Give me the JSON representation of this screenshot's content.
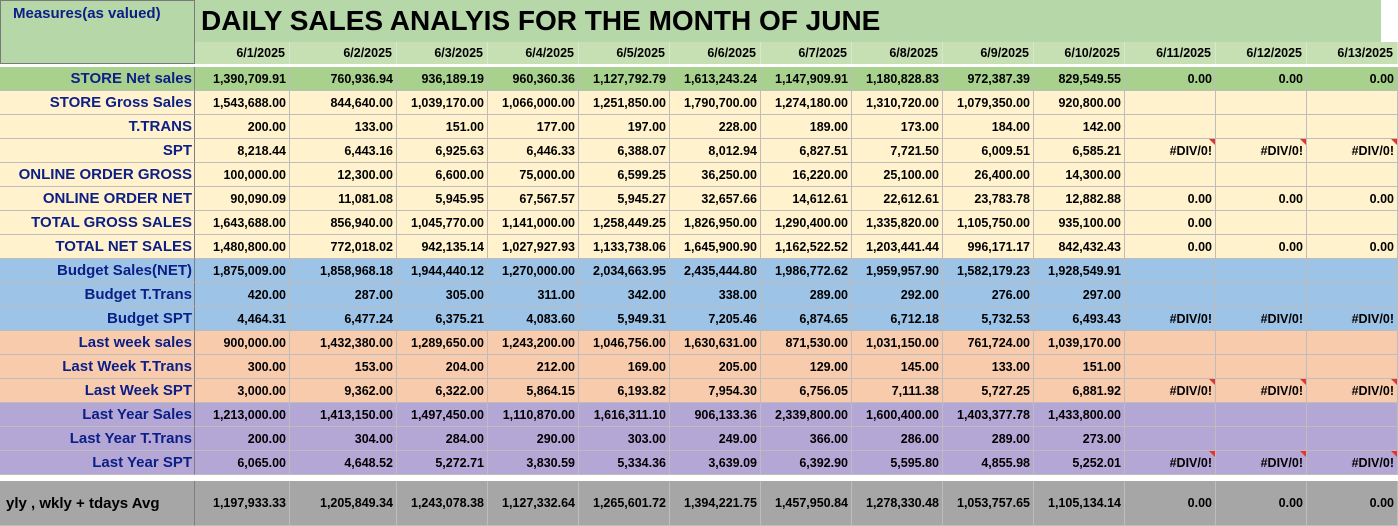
{
  "header": {
    "corner_label": "Measures(as valued)",
    "title": "DAILY SALES ANALYIS FOR THE MONTH OF  JUNE"
  },
  "dates": [
    "6/1/2025",
    "6/2/2025",
    "6/3/2025",
    "6/4/2025",
    "6/5/2025",
    "6/6/2025",
    "6/7/2025",
    "6/8/2025",
    "6/9/2025",
    "6/10/2025",
    "6/11/2025",
    "6/12/2025",
    "6/13/2025"
  ],
  "colors": {
    "green": "#a9d18e",
    "cream": "#fff2cc",
    "blue": "#9dc3e6",
    "orange": "#f8cbad",
    "purple": "#b4a7d6",
    "gray": "#a6a6a6",
    "label_text": "#0b1f86",
    "comment_marker": "#e8332a"
  },
  "rows": [
    {
      "label": "STORE Net sales",
      "band": "green",
      "values": [
        "1,390,709.91",
        "760,936.94",
        "936,189.19",
        "960,360.36",
        "1,127,792.79",
        "1,613,243.24",
        "1,147,909.91",
        "1,180,828.83",
        "972,387.39",
        "829,549.55",
        "0.00",
        "0.00",
        "0.00"
      ]
    },
    {
      "label": "STORE Gross Sales",
      "band": "cream",
      "values": [
        "1,543,688.00",
        "844,640.00",
        "1,039,170.00",
        "1,066,000.00",
        "1,251,850.00",
        "1,790,700.00",
        "1,274,180.00",
        "1,310,720.00",
        "1,079,350.00",
        "920,800.00",
        "",
        "",
        ""
      ]
    },
    {
      "label": "T.TRANS",
      "band": "cream",
      "values": [
        "200.00",
        "133.00",
        "151.00",
        "177.00",
        "197.00",
        "228.00",
        "189.00",
        "173.00",
        "184.00",
        "142.00",
        "",
        "",
        ""
      ]
    },
    {
      "label": "SPT",
      "band": "cream",
      "values": [
        "8,218.44",
        "6,443.16",
        "6,925.63",
        "6,446.33",
        "6,388.07",
        "8,012.94",
        "6,827.51",
        "7,721.50",
        "6,009.51",
        "6,585.21",
        "#DIV/0!",
        "#DIV/0!",
        "#DIV/0!"
      ],
      "flags": [
        10,
        11,
        12
      ]
    },
    {
      "label": "ONLINE ORDER GROSS",
      "band": "cream",
      "values": [
        "100,000.00",
        "12,300.00",
        "6,600.00",
        "75,000.00",
        "6,599.25",
        "36,250.00",
        "16,220.00",
        "25,100.00",
        "26,400.00",
        "14,300.00",
        "",
        "",
        ""
      ]
    },
    {
      "label": "ONLINE ORDER NET",
      "band": "cream",
      "values": [
        "90,090.09",
        "11,081.08",
        "5,945.95",
        "67,567.57",
        "5,945.27",
        "32,657.66",
        "14,612.61",
        "22,612.61",
        "23,783.78",
        "12,882.88",
        "0.00",
        "0.00",
        "0.00"
      ]
    },
    {
      "label": "TOTAL GROSS SALES",
      "band": "cream",
      "values": [
        "1,643,688.00",
        "856,940.00",
        "1,045,770.00",
        "1,141,000.00",
        "1,258,449.25",
        "1,826,950.00",
        "1,290,400.00",
        "1,335,820.00",
        "1,105,750.00",
        "935,100.00",
        "0.00",
        "",
        ""
      ]
    },
    {
      "label": "TOTAL NET SALES",
      "band": "cream",
      "values": [
        "1,480,800.00",
        "772,018.02",
        "942,135.14",
        "1,027,927.93",
        "1,133,738.06",
        "1,645,900.90",
        "1,162,522.52",
        "1,203,441.44",
        "996,171.17",
        "842,432.43",
        "0.00",
        "0.00",
        "0.00"
      ]
    },
    {
      "label": "Budget Sales(NET)",
      "band": "blue",
      "values": [
        "1,875,009.00",
        "1,858,968.18",
        "1,944,440.12",
        "1,270,000.00",
        "2,034,663.95",
        "2,435,444.80",
        "1,986,772.62",
        "1,959,957.90",
        "1,582,179.23",
        "1,928,549.91",
        "",
        "",
        ""
      ]
    },
    {
      "label": "Budget T.Trans",
      "band": "blue",
      "values": [
        "420.00",
        "287.00",
        "305.00",
        "311.00",
        "342.00",
        "338.00",
        "289.00",
        "292.00",
        "276.00",
        "297.00",
        "",
        "",
        ""
      ]
    },
    {
      "label": "Budget SPT",
      "band": "blue",
      "values": [
        "4,464.31",
        "6,477.24",
        "6,375.21",
        "4,083.60",
        "5,949.31",
        "7,205.46",
        "6,874.65",
        "6,712.18",
        "5,732.53",
        "6,493.43",
        "#DIV/0!",
        "#DIV/0!",
        "#DIV/0!"
      ]
    },
    {
      "label": "Last week sales",
      "band": "orange",
      "values": [
        "900,000.00",
        "1,432,380.00",
        "1,289,650.00",
        "1,243,200.00",
        "1,046,756.00",
        "1,630,631.00",
        "871,530.00",
        "1,031,150.00",
        "761,724.00",
        "1,039,170.00",
        "",
        "",
        ""
      ]
    },
    {
      "label": "Last Week T.Trans",
      "band": "orange",
      "values": [
        "300.00",
        "153.00",
        "204.00",
        "212.00",
        "169.00",
        "205.00",
        "129.00",
        "145.00",
        "133.00",
        "151.00",
        "",
        "",
        ""
      ]
    },
    {
      "label": "Last Week SPT",
      "band": "orange",
      "values": [
        "3,000.00",
        "9,362.00",
        "6,322.00",
        "5,864.15",
        "6,193.82",
        "7,954.30",
        "6,756.05",
        "7,111.38",
        "5,727.25",
        "6,881.92",
        "#DIV/0!",
        "#DIV/0!",
        "#DIV/0!"
      ],
      "flags": [
        10,
        11,
        12
      ]
    },
    {
      "label": "Last Year  Sales",
      "band": "purple",
      "values": [
        "1,213,000.00",
        "1,413,150.00",
        "1,497,450.00",
        "1,110,870.00",
        "1,616,311.10",
        "906,133.36",
        "2,339,800.00",
        "1,600,400.00",
        "1,403,377.78",
        "1,433,800.00",
        "",
        "",
        ""
      ]
    },
    {
      "label": "Last Year  T.Trans",
      "band": "purple",
      "values": [
        "200.00",
        "304.00",
        "284.00",
        "290.00",
        "303.00",
        "249.00",
        "366.00",
        "286.00",
        "289.00",
        "273.00",
        "",
        "",
        ""
      ]
    },
    {
      "label": "Last Year SPT",
      "band": "purple",
      "values": [
        "6,065.00",
        "4,648.52",
        "5,272.71",
        "3,830.59",
        "5,334.36",
        "3,639.09",
        "6,392.90",
        "5,595.80",
        "4,855.98",
        "5,252.01",
        "#DIV/0!",
        "#DIV/0!",
        "#DIV/0!"
      ],
      "flags": [
        10,
        11,
        12
      ]
    },
    {
      "label": "yly , wkly + tdays Avg",
      "band": "gray",
      "values": [
        "1,197,933.33",
        "1,205,849.34",
        "1,243,078.38",
        "1,127,332.64",
        "1,265,601.72",
        "1,394,221.75",
        "1,457,950.84",
        "1,278,330.48",
        "1,053,757.65",
        "1,105,134.14",
        "0.00",
        "0.00",
        "0.00"
      ]
    }
  ]
}
